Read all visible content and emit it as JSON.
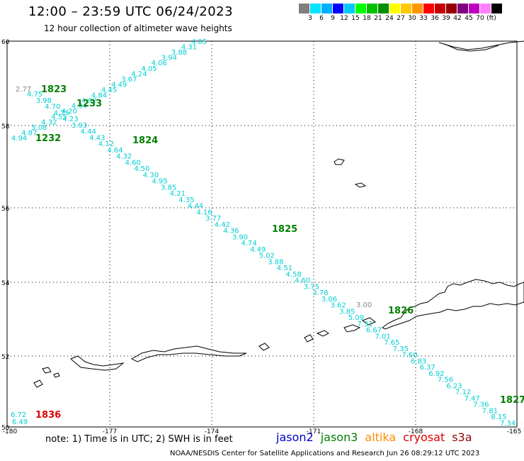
{
  "header": {
    "title": "12:00 – 23:59 UTC 06/24/2023",
    "subtitle": "12 hour collection of altimeter wave heights"
  },
  "legend": {
    "colors": [
      "#7f7f7f",
      "#00e5ff",
      "#00b0ff",
      "#0000ff",
      "#00c8ff",
      "#00ff00",
      "#00c000",
      "#009000",
      "#ffff00",
      "#ffc800",
      "#ff9600",
      "#ff0000",
      "#c80000",
      "#960000",
      "#800080",
      "#c000c0",
      "#ff80ff",
      "#000000"
    ],
    "labels": [
      "3",
      "6",
      "9",
      "12",
      "15",
      "18",
      "21",
      "24",
      "27",
      "30",
      "33",
      "36",
      "39",
      "42",
      "45",
      "70",
      "(ft)"
    ]
  },
  "axes": {
    "lat_labels": [
      "60",
      "58",
      "56",
      "54",
      "52",
      "50"
    ],
    "lon_labels": [
      "-180",
      "-177",
      "-174",
      "-171",
      "-168",
      "-165"
    ]
  },
  "pass_labels": [
    {
      "text": "1823",
      "color": "#008000"
    },
    {
      "text": "1233",
      "color": "#008000"
    },
    {
      "text": "1232",
      "color": "#008000"
    },
    {
      "text": "1824",
      "color": "#008000"
    },
    {
      "text": "1825",
      "color": "#008000"
    },
    {
      "text": "1826",
      "color": "#008000"
    },
    {
      "text": "1827",
      "color": "#008000"
    },
    {
      "text": "1836",
      "color": "#e00000"
    }
  ],
  "gray_values": [
    "2.77",
    "3.00"
  ],
  "tracks": {
    "track_a": [
      "4.94",
      "4.87",
      "5.08",
      "4.32",
      "4.55",
      "4.20",
      "4.34",
      "4.92",
      "4.84",
      "4.45",
      "4.49",
      "3.67",
      "4.24",
      "4.05",
      "4.06",
      "3.94",
      "3.88",
      "4.31",
      "4.05"
    ],
    "track_b": [
      "4.75",
      "3.98",
      "4.70",
      "4.75",
      "4.23",
      "3.93",
      "4.44",
      "4.43",
      "4.12",
      "4.64",
      "4.32",
      "4.60",
      "4.50",
      "4.30",
      "4.95",
      "3.85",
      "4.21",
      "4.35",
      "4.44",
      "4.16",
      "3.77",
      "4.42",
      "4.36",
      "3.90",
      "4.74",
      "4.49",
      "5.02",
      "3.88",
      "4.51",
      "4.58",
      "4.60",
      "3.75",
      "3.78",
      "3.06",
      "3.62",
      "3.85",
      "5.09",
      "7.31",
      "6.67",
      "7.01",
      "7.65",
      "7.35",
      "7.60",
      "6.83",
      "6.37",
      "6.92",
      "7.56",
      "6.23",
      "7.12",
      "7.47",
      "7.36",
      "7.81",
      "8.15",
      "7.34"
    ],
    "track_c": [
      "6.72",
      "6.49"
    ]
  },
  "footer": {
    "note": "note:  1) Time is in UTC;  2) SWH is in feet",
    "satellites": [
      {
        "name": "jason2",
        "color": "#0000cc"
      },
      {
        "name": "jason3",
        "color": "#008000"
      },
      {
        "name": "altika",
        "color": "#ff8c00"
      },
      {
        "name": "cryosat",
        "color": "#dd0000"
      },
      {
        "name": "s3a",
        "color": "#990000"
      }
    ],
    "credit": "NOAA/NESDIS Center for Satellite Applications and Research      Jun 26 08:29:12 UTC 2023"
  }
}
